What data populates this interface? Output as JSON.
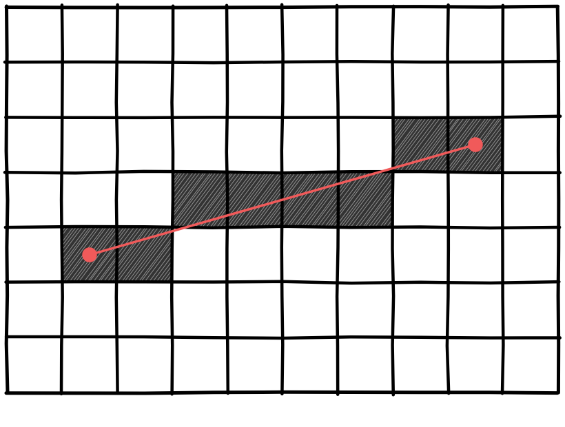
{
  "grid": {
    "columns": 10,
    "rows": 7
  },
  "filled_cells": [
    {
      "col": 1,
      "row": 4
    },
    {
      "col": 2,
      "row": 4
    },
    {
      "col": 3,
      "row": 3
    },
    {
      "col": 4,
      "row": 3
    },
    {
      "col": 5,
      "row": 3
    },
    {
      "col": 6,
      "row": 3
    },
    {
      "col": 7,
      "row": 2
    },
    {
      "col": 8,
      "row": 2
    }
  ],
  "segment": {
    "start": {
      "col": 1.5,
      "row": 4.5
    },
    "end": {
      "col": 8.5,
      "row": 2.5
    }
  },
  "colors": {
    "background": "#ffffff",
    "grid_line": "#000000",
    "filled_cell": "#333333",
    "segment": "#f05a5a"
  }
}
